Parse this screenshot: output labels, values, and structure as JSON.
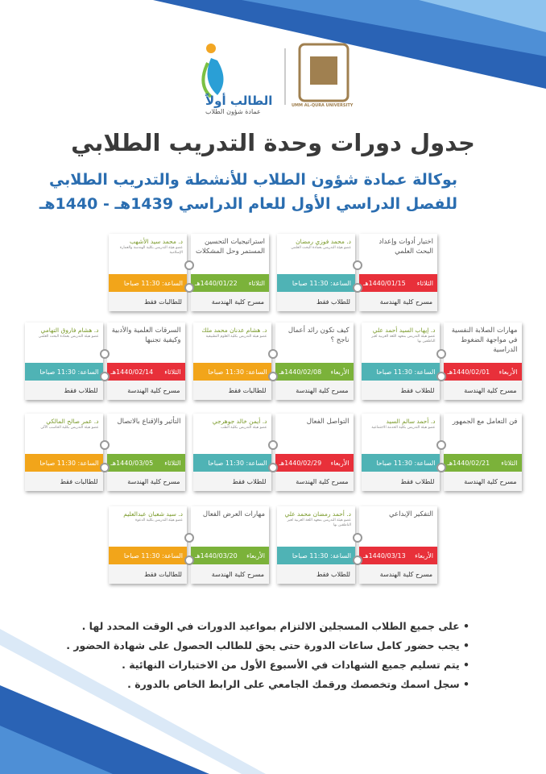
{
  "header": {
    "logo_text": "الطالب أولاً",
    "logo_subtext": "عمادة شؤون الطلاب",
    "university": "UMM AL-QURA UNIVERSITY"
  },
  "title": "جدول دورات وحدة التدريب الطلابي",
  "subtitle": [
    "بوكالة عمادة شؤون الطلاب للأنشطة والتدريب الطلابي",
    "للفصل الدراسي الأول للعام الدراسي 1439هـ - 1440هـ"
  ],
  "courses": [
    {
      "title": "اختيار أدوات وإعداد البحث العلمي",
      "day": "الثلاثاء",
      "date": "1440/01/15هـ",
      "date_color": "#e8303a",
      "venue": "مسرح كلية الهندسة",
      "instructor": "د. محمد فوزي رمضان",
      "affiliation": "عضو هيئة التدريس بعمادة البحث العلمي",
      "time": "الساعة: 11:30 صباحا",
      "time_color": "#4fb3b5",
      "audience": "للطلاب فقط"
    },
    {
      "title": "استراتيجيات التحسين المستمر وحل المشكلات",
      "day": "الثلاثاء",
      "date": "1440/01/22هـ",
      "date_color": "#7bb23a",
      "venue": "مسرح كلية الهندسة",
      "instructor": "د. محمد سيد الأشهب",
      "affiliation": "عضو هيئة التدريس بكلية الهندسة والعمارة الإسلامية",
      "time": "الساعة: 11:30 صباحا",
      "time_color": "#f2a51a",
      "audience": "للطالبات فقط"
    },
    {
      "title": "مهارات الصلابة النفسية في مواجهة الضغوط الدراسية",
      "day": "الأربعاء",
      "date": "1440/02/01هـ",
      "date_color": "#e8303a",
      "venue": "مسرح كلية الهندسة",
      "instructor": "د. إيهاب السيد أحمد علي",
      "affiliation": "عضو هيئة التدريس بمعهد اللغة العربية لغير الناطقين بها",
      "time": "الساعة: 11:30 صباحا",
      "time_color": "#4fb3b5",
      "audience": "للطلاب فقط"
    },
    {
      "title": "كيف تكون رائد أعمال ناجح ؟",
      "day": "الأربعاء",
      "date": "1440/02/08هـ",
      "date_color": "#7bb23a",
      "venue": "مسرح كلية الهندسة",
      "instructor": "د. هشام عدنان محمد ملك",
      "affiliation": "عضو هيئة التدريس بكلية العلوم التطبيقية",
      "time": "الساعة: 11:30 صباحا",
      "time_color": "#f2a51a",
      "audience": "للطالبات فقط"
    },
    {
      "title": "السرقات العلمية والأدبية وكيفية تجنبها",
      "day": "الثلاثاء",
      "date": "1440/02/14هـ",
      "date_color": "#e8303a",
      "venue": "مسرح كلية الهندسة",
      "instructor": "د. هشام فاروق التهامي",
      "affiliation": "عضو هيئة التدريس بعمادة البحث العلمي",
      "time": "الساعة: 11:30 صباحا",
      "time_color": "#4fb3b5",
      "audience": "للطلاب فقط"
    },
    {
      "title": "فن التعامل مع الجمهور",
      "day": "الثلاثاء",
      "date": "1440/02/21هـ",
      "date_color": "#7bb23a",
      "venue": "مسرح كلية الهندسة",
      "instructor": "د. أحمد سالم السيد",
      "affiliation": "عضو هيئة التدريس بكلية الخدمة الاجتماعية",
      "time": "الساعة: 11:30 صباحا",
      "time_color": "#4fb3b5",
      "audience": "للطلاب فقط"
    },
    {
      "title": "التواصل الفعال",
      "day": "الأربعاء",
      "date": "1440/02/29هـ",
      "date_color": "#e8303a",
      "venue": "مسرح كلية الهندسة",
      "instructor": "د. أيمن خالد جوهرجي",
      "affiliation": "عضو هيئة التدريس بكلية الطب",
      "time": "الساعة: 11:30 صباحا",
      "time_color": "#4fb3b5",
      "audience": "للطلاب فقط"
    },
    {
      "title": "التأثير والإقناع بالاتصال",
      "day": "الثلاثاء",
      "date": "1440/03/05هـ",
      "date_color": "#7bb23a",
      "venue": "مسرح كلية الهندسة",
      "instructor": "د. عمر صالح المالكي",
      "affiliation": "عضو هيئة التدريس بكلية الحاسب الآلي",
      "time": "الساعة: 11:30 صباحا",
      "time_color": "#f2a51a",
      "audience": "للطالبات فقط"
    },
    {
      "title": "التفكير الإبداعي",
      "day": "الأربعاء",
      "date": "1440/03/13هـ",
      "date_color": "#e8303a",
      "venue": "مسرح كلية الهندسة",
      "instructor": "د. أحمد رمضان محمد علي",
      "affiliation": "عضو هيئة التدريس بمعهد اللغة العربية لغير الناطقين بها",
      "time": "الساعة: 11:30 صباحا",
      "time_color": "#4fb3b5",
      "audience": "للطلاب فقط"
    },
    {
      "title": "مهارات العرض الفعال",
      "day": "الأربعاء",
      "date": "1440/03/20هـ",
      "date_color": "#7bb23a",
      "venue": "مسرح كلية الهندسة",
      "instructor": "د. سيد شعبان عبدالعليم",
      "affiliation": "عضو هيئة التدريس بكلية الدعوة",
      "time": "الساعة: 11:30 صباحا",
      "time_color": "#f2a51a",
      "audience": "للطالبات فقط"
    }
  ],
  "notes": [
    "على جميع الطلاب المسجلين الالتزام بمواعيد الدورات في الوقت المحدد لها .",
    "يجب حضور كامل ساعات الدورة حتى يحق للطالب الحصول على شهادة الحضور .",
    "يتم تسليم جميع الشهادات في الأسبوع الأول من الاختبارات النهائية .",
    "سجل اسمك وتخصصك ورقمك الجامعي على الرابط الخاص بالدورة ."
  ]
}
